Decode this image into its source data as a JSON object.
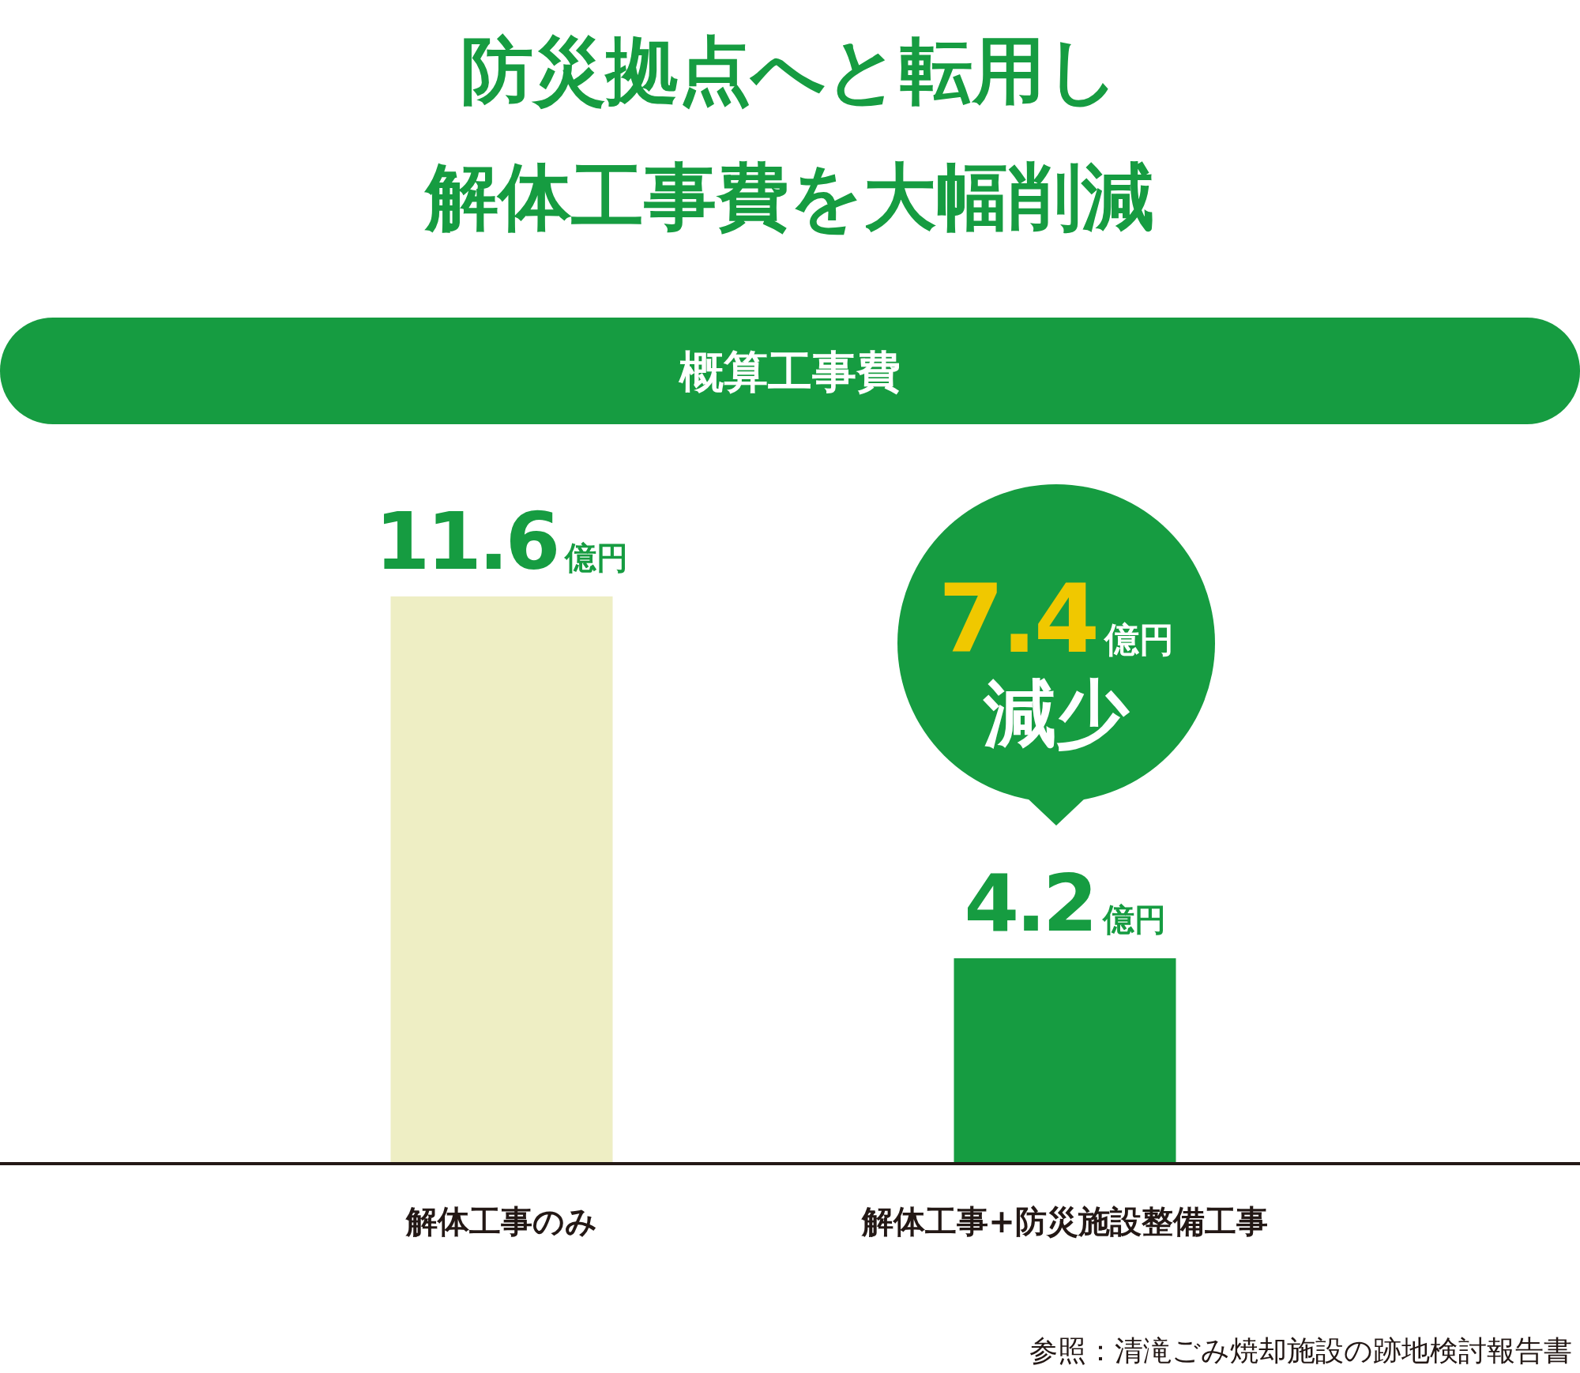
{
  "chart_data": {
    "type": "bar",
    "title": "防災拠点へと転用し解体工事費を大幅削減",
    "subtitle": "概算工事費",
    "categories": [
      "解体工事のみ",
      "解体工事+防災施設整備工事"
    ],
    "values": [
      11.6,
      4.2
    ],
    "colors": [
      "#eeeec4",
      "#169c41"
    ],
    "value_labels": [
      "11.6億円",
      "4.2億円"
    ],
    "annotations": [
      "7.4億円",
      "減少",
      "参照：清滝ごみ焼却施設の跡地検討報告書"
    ]
  }
}
